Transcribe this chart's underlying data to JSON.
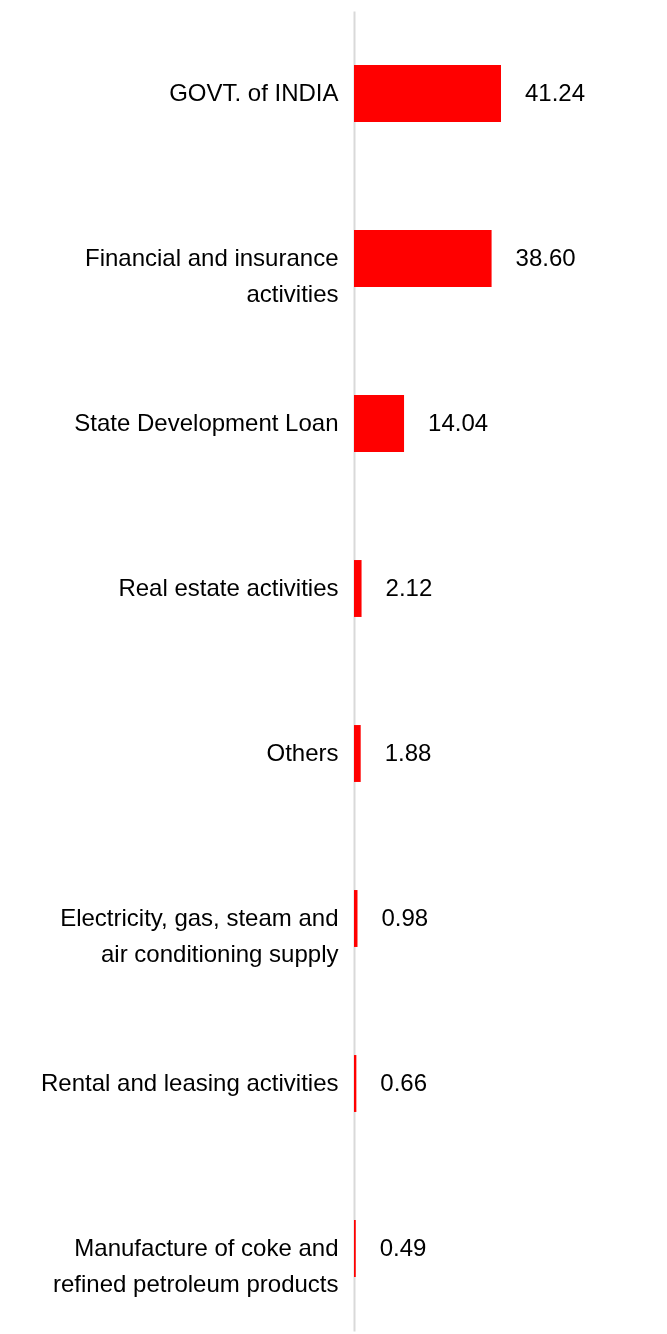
{
  "chart_data": {
    "type": "bar",
    "orientation": "horizontal",
    "categories": [
      "GOVT. of INDIA",
      "Financial and insurance activities",
      "State Development Loan",
      "Real estate activities",
      "Others",
      "Electricity, gas, steam and air conditioning supply",
      "Rental and leasing activities",
      "Manufacture of coke and refined petroleum products"
    ],
    "values": [
      41.24,
      38.6,
      14.04,
      2.12,
      1.88,
      0.98,
      0.66,
      0.49
    ],
    "value_labels": [
      "41.24",
      "38.60",
      "14.04",
      "2.12",
      "1.88",
      "0.98",
      "0.66",
      "0.49"
    ],
    "color": "#ff0000",
    "tick_labels": "y"
  }
}
